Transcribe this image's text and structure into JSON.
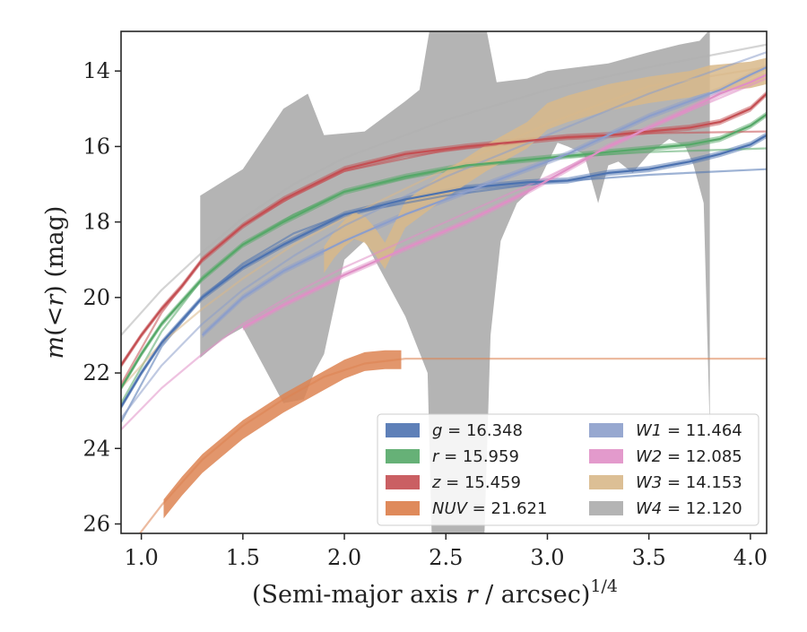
{
  "chart_data": {
    "type": "line",
    "title": "",
    "xlabel": "(Semi-major axis r / arcsec)",
    "xlabel_parts": {
      "prefix": "(Semi-major axis ",
      "var": "r",
      "suffix": " / arcsec)",
      "superscript": "1/4"
    },
    "ylabel": "m(< r) (mag)",
    "ylabel_parts": {
      "m": "m",
      "open": "(",
      "lt": "<",
      "r": "r",
      "close": ")",
      "unit": " (mag)"
    },
    "xlim": [
      0.9,
      4.08
    ],
    "ylim": [
      26.25,
      12.95
    ],
    "y_inverted": true,
    "x_ticks": [
      1.0,
      1.5,
      2.0,
      2.5,
      3.0,
      3.5,
      4.0
    ],
    "x_tick_labels": [
      "1.0",
      "1.5",
      "2.0",
      "2.5",
      "3.0",
      "3.5",
      "4.0"
    ],
    "y_ticks": [
      14,
      16,
      18,
      20,
      22,
      24,
      26
    ],
    "y_tick_labels": [
      "14",
      "16",
      "18",
      "20",
      "22",
      "24",
      "26"
    ],
    "grid": false,
    "legend_placement": "lower-right",
    "series": [
      {
        "name": "g = 16.348",
        "band": "g",
        "value": "16.348",
        "color": "#4c72b0",
        "profile": [
          [
            0.9,
            22.9
          ],
          [
            1.0,
            22.0
          ],
          [
            1.1,
            21.2
          ],
          [
            1.2,
            20.6
          ],
          [
            1.3,
            20.0
          ],
          [
            1.5,
            19.2
          ],
          [
            1.7,
            18.6
          ],
          [
            2.0,
            17.8
          ],
          [
            2.3,
            17.4
          ],
          [
            2.6,
            17.1
          ],
          [
            2.9,
            16.95
          ],
          [
            3.1,
            16.9
          ],
          [
            3.3,
            16.7
          ],
          [
            3.5,
            16.6
          ],
          [
            3.7,
            16.4
          ],
          [
            3.85,
            16.2
          ],
          [
            4.0,
            15.95
          ],
          [
            4.08,
            15.7
          ]
        ],
        "model": [
          [
            0.9,
            23.3
          ],
          [
            1.1,
            21.3
          ],
          [
            1.3,
            20.0
          ],
          [
            1.5,
            19.1
          ],
          [
            1.75,
            18.3
          ],
          [
            2.0,
            17.8
          ],
          [
            2.5,
            17.3
          ],
          [
            3.0,
            16.95
          ],
          [
            3.5,
            16.75
          ],
          [
            4.08,
            16.6
          ]
        ],
        "band_halfwidth": 0.08
      },
      {
        "name": "r = 15.959",
        "band": "r",
        "value": "15.959",
        "color": "#55a868",
        "profile": [
          [
            0.9,
            22.4
          ],
          [
            1.0,
            21.5
          ],
          [
            1.1,
            20.7
          ],
          [
            1.2,
            20.1
          ],
          [
            1.3,
            19.5
          ],
          [
            1.5,
            18.6
          ],
          [
            1.7,
            18.0
          ],
          [
            2.0,
            17.2
          ],
          [
            2.3,
            16.8
          ],
          [
            2.6,
            16.5
          ],
          [
            2.9,
            16.35
          ],
          [
            3.1,
            16.25
          ],
          [
            3.3,
            16.15
          ],
          [
            3.5,
            16.05
          ],
          [
            3.7,
            15.95
          ],
          [
            3.85,
            15.8
          ],
          [
            4.0,
            15.45
          ],
          [
            4.08,
            15.15
          ]
        ],
        "model": [
          [
            0.9,
            22.8
          ],
          [
            1.1,
            20.9
          ],
          [
            1.3,
            19.5
          ],
          [
            1.5,
            18.6
          ],
          [
            1.75,
            17.8
          ],
          [
            2.0,
            17.2
          ],
          [
            2.5,
            16.6
          ],
          [
            3.0,
            16.3
          ],
          [
            3.5,
            16.15
          ],
          [
            4.08,
            16.05
          ]
        ],
        "band_halfwidth": 0.08
      },
      {
        "name": "z = 15.459",
        "band": "z",
        "value": "15.459",
        "color": "#c44e52",
        "profile": [
          [
            0.9,
            21.8
          ],
          [
            1.0,
            21.0
          ],
          [
            1.1,
            20.3
          ],
          [
            1.2,
            19.7
          ],
          [
            1.3,
            19.0
          ],
          [
            1.5,
            18.1
          ],
          [
            1.7,
            17.4
          ],
          [
            2.0,
            16.6
          ],
          [
            2.3,
            16.2
          ],
          [
            2.6,
            16.0
          ],
          [
            2.9,
            15.85
          ],
          [
            3.1,
            15.75
          ],
          [
            3.3,
            15.7
          ],
          [
            3.5,
            15.6
          ],
          [
            3.7,
            15.5
          ],
          [
            3.85,
            15.35
          ],
          [
            4.0,
            15.0
          ],
          [
            4.08,
            14.6
          ]
        ],
        "model": [
          [
            0.9,
            22.3
          ],
          [
            1.1,
            20.4
          ],
          [
            1.3,
            19.0
          ],
          [
            1.5,
            18.1
          ],
          [
            1.75,
            17.3
          ],
          [
            2.0,
            16.65
          ],
          [
            2.5,
            16.1
          ],
          [
            3.0,
            15.8
          ],
          [
            3.5,
            15.65
          ],
          [
            4.08,
            15.6
          ]
        ],
        "band_halfwidth": 0.08
      },
      {
        "name": "NUV = 21.621",
        "band": "NUV",
        "value": "21.621",
        "color": "#dd8452",
        "profile": [
          [
            1.11,
            25.6
          ],
          [
            1.2,
            25.0
          ],
          [
            1.3,
            24.4
          ],
          [
            1.5,
            23.5
          ],
          [
            1.7,
            22.8
          ],
          [
            1.9,
            22.2
          ],
          [
            2.0,
            21.9
          ],
          [
            2.1,
            21.7
          ],
          [
            2.2,
            21.65
          ],
          [
            2.28,
            21.65
          ]
        ],
        "model": [
          [
            0.9,
            27.0
          ],
          [
            1.0,
            26.2
          ],
          [
            1.1,
            25.5
          ],
          [
            1.2,
            24.9
          ],
          [
            1.3,
            24.3
          ],
          [
            1.5,
            23.4
          ],
          [
            1.7,
            22.7
          ],
          [
            1.9,
            22.1
          ],
          [
            2.1,
            21.75
          ],
          [
            2.3,
            21.62
          ],
          [
            2.6,
            21.62
          ],
          [
            4.08,
            21.62
          ]
        ],
        "band_halfwidth": 0.25
      },
      {
        "name": "W1 = 11.464",
        "band": "W1",
        "value": "11.464",
        "color": "#8c9ecb",
        "profile": [
          [
            1.3,
            21.0
          ],
          [
            1.5,
            20.0
          ],
          [
            1.7,
            19.3
          ],
          [
            2.0,
            18.5
          ],
          [
            2.3,
            17.8
          ],
          [
            2.6,
            17.2
          ],
          [
            2.9,
            16.6
          ],
          [
            3.1,
            16.2
          ],
          [
            3.3,
            15.7
          ],
          [
            3.5,
            15.2
          ],
          [
            3.7,
            14.8
          ],
          [
            3.85,
            14.5
          ],
          [
            4.0,
            14.1
          ],
          [
            4.08,
            13.9
          ]
        ],
        "model": [
          [
            0.9,
            23.2
          ],
          [
            1.1,
            21.8
          ],
          [
            1.3,
            20.7
          ],
          [
            1.5,
            19.8
          ],
          [
            1.75,
            18.9
          ],
          [
            2.0,
            18.1
          ],
          [
            2.5,
            16.8
          ],
          [
            3.0,
            15.7
          ],
          [
            3.5,
            14.6
          ],
          [
            4.08,
            13.5
          ]
        ],
        "band_halfwidth": 0.08
      },
      {
        "name": "W2 = 12.085",
        "band": "W2",
        "value": "12.085",
        "color": "#e08fc6",
        "profile": [
          [
            1.5,
            20.8
          ],
          [
            1.7,
            20.2
          ],
          [
            2.0,
            19.4
          ],
          [
            2.3,
            18.7
          ],
          [
            2.6,
            18.0
          ],
          [
            2.9,
            17.2
          ],
          [
            3.1,
            16.6
          ],
          [
            3.3,
            16.0
          ],
          [
            3.5,
            15.5
          ],
          [
            3.7,
            15.0
          ],
          [
            3.85,
            14.6
          ],
          [
            4.0,
            14.3
          ],
          [
            4.08,
            14.1
          ]
        ],
        "model": [
          [
            0.9,
            23.5
          ],
          [
            1.1,
            22.4
          ],
          [
            1.3,
            21.5
          ],
          [
            1.5,
            20.7
          ],
          [
            1.75,
            19.9
          ],
          [
            2.0,
            19.2
          ],
          [
            2.5,
            18.0
          ],
          [
            3.0,
            16.8
          ],
          [
            3.5,
            15.5
          ],
          [
            4.08,
            14.2
          ]
        ],
        "band_halfwidth": 0.08
      },
      {
        "name": "W3 = 14.153",
        "band": "W3",
        "value": "14.153",
        "color": "#d8b88a",
        "profile": [
          [
            1.9,
            19.0
          ],
          [
            1.95,
            18.6
          ],
          [
            2.0,
            18.3
          ],
          [
            2.05,
            18.1
          ],
          [
            2.1,
            18.2
          ],
          [
            2.15,
            18.5
          ],
          [
            2.2,
            18.9
          ],
          [
            2.3,
            17.8
          ],
          [
            2.5,
            17.0
          ],
          [
            2.7,
            16.3
          ],
          [
            2.9,
            15.7
          ],
          [
            3.0,
            15.2
          ],
          [
            3.1,
            15.0
          ],
          [
            3.3,
            14.7
          ],
          [
            3.5,
            14.5
          ],
          [
            3.7,
            14.35
          ],
          [
            3.8,
            14.2
          ],
          [
            4.0,
            14.1
          ],
          [
            4.08,
            14.0
          ]
        ],
        "model": [
          [
            0.9,
            22.4
          ],
          [
            1.1,
            21.2
          ],
          [
            1.3,
            20.3
          ],
          [
            1.5,
            19.5
          ],
          [
            1.75,
            18.6
          ],
          [
            2.0,
            17.9
          ],
          [
            2.5,
            16.6
          ],
          [
            3.0,
            15.4
          ],
          [
            3.5,
            14.4
          ],
          [
            4.08,
            13.9
          ]
        ],
        "band_halfwidth": 0.35
      },
      {
        "name": "W4 = 12.120",
        "band": "W4",
        "value": "12.120",
        "color": "#b0b0b0",
        "envelope_upper": [
          [
            1.29,
            17.3
          ],
          [
            1.5,
            16.6
          ],
          [
            1.7,
            15.0
          ],
          [
            1.82,
            14.6
          ],
          [
            1.9,
            15.7
          ],
          [
            2.1,
            15.6
          ],
          [
            2.3,
            14.8
          ],
          [
            2.37,
            14.5
          ],
          [
            2.42,
            12.9
          ],
          [
            2.5,
            12.9
          ],
          [
            2.62,
            12.9
          ],
          [
            2.7,
            12.9
          ],
          [
            2.75,
            14.3
          ],
          [
            2.9,
            14.2
          ],
          [
            3.0,
            14.0
          ],
          [
            3.3,
            13.8
          ],
          [
            3.5,
            13.5
          ],
          [
            3.65,
            13.3
          ],
          [
            3.75,
            13.2
          ],
          [
            3.8,
            12.9
          ]
        ],
        "envelope_lower": [
          [
            3.8,
            23.5
          ],
          [
            3.77,
            17.5
          ],
          [
            3.72,
            16.5
          ],
          [
            3.68,
            16.0
          ],
          [
            3.6,
            15.8
          ],
          [
            3.5,
            16.2
          ],
          [
            3.42,
            16.7
          ],
          [
            3.35,
            16.4
          ],
          [
            3.3,
            16.5
          ],
          [
            3.25,
            17.5
          ],
          [
            3.18,
            16.2
          ],
          [
            3.1,
            16.0
          ],
          [
            3.05,
            15.9
          ],
          [
            2.95,
            17.0
          ],
          [
            2.85,
            17.5
          ],
          [
            2.77,
            18.5
          ],
          [
            2.72,
            21.0
          ],
          [
            2.69,
            26.25
          ],
          [
            2.5,
            26.25
          ],
          [
            2.43,
            26.25
          ],
          [
            2.41,
            22.0
          ],
          [
            2.3,
            20.5
          ],
          [
            2.2,
            19.5
          ],
          [
            2.1,
            18.5
          ],
          [
            2.0,
            19.0
          ],
          [
            1.9,
            21.5
          ],
          [
            1.85,
            22.0
          ],
          [
            1.8,
            22.7
          ],
          [
            1.7,
            22.8
          ],
          [
            1.6,
            21.8
          ],
          [
            1.5,
            20.8
          ],
          [
            1.4,
            21.1
          ],
          [
            1.29,
            21.6
          ]
        ],
        "model": [
          [
            0.9,
            21.0
          ],
          [
            1.1,
            19.8
          ],
          [
            1.3,
            18.8
          ],
          [
            1.5,
            17.9
          ],
          [
            1.75,
            17.0
          ],
          [
            2.0,
            16.3
          ],
          [
            2.5,
            15.3
          ],
          [
            3.0,
            14.5
          ],
          [
            3.5,
            13.9
          ],
          [
            4.08,
            13.3
          ]
        ]
      }
    ],
    "legend": {
      "columns": [
        [
          "g",
          "r",
          "z",
          "NUV"
        ],
        [
          "W1",
          "W2",
          "W3",
          "W4"
        ]
      ]
    }
  }
}
